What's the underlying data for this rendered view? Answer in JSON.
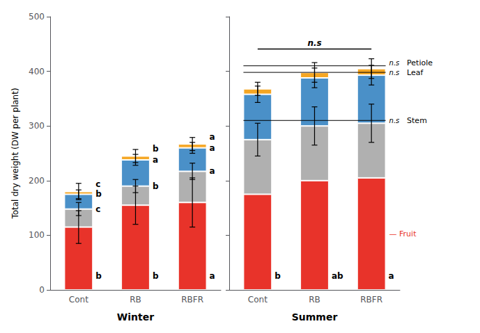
{
  "chart_data": [
    {
      "type": "bar",
      "stacked": true,
      "grid": false,
      "xlabel": "Winter",
      "ylabel": "Total dry weight (DW per plant)",
      "categories": [
        "Cont",
        "RB",
        "RBFR"
      ],
      "ylim": [
        0,
        500
      ],
      "yticks": [
        0,
        100,
        200,
        300,
        400,
        500
      ],
      "series": [
        {
          "name": "Fruit",
          "color": "#e8332a",
          "values": [
            115,
            155,
            160
          ],
          "errors": [
            30,
            35,
            45
          ],
          "letters": [
            "b",
            "b",
            "a"
          ]
        },
        {
          "name": "Stem",
          "color": "#b0b0b0",
          "values": [
            33,
            35,
            57
          ],
          "errors": [
            12,
            12,
            15
          ],
          "letters": [
            "c",
            "b",
            "a"
          ]
        },
        {
          "name": "Leaf",
          "color": "#4a90c8",
          "values": [
            27,
            48,
            43
          ],
          "errors": [
            8,
            10,
            10
          ],
          "letters": [
            "b",
            "a",
            "a"
          ]
        },
        {
          "name": "Petiole",
          "color": "#f5a623",
          "values": [
            5,
            7,
            7
          ]
        }
      ],
      "total_errors": [
        15,
        12,
        12
      ],
      "total_letters": [
        "c",
        "b",
        "a"
      ]
    },
    {
      "type": "bar",
      "stacked": true,
      "grid": false,
      "tick_labels": "x",
      "xlabel": "Summer",
      "categories": [
        "Cont",
        "RB",
        "RBFR"
      ],
      "ylim": [
        0,
        500
      ],
      "yticks": [
        0,
        100,
        200,
        300,
        400,
        500
      ],
      "series": [
        {
          "name": "Fruit",
          "color": "#e8332a",
          "values": [
            175,
            200,
            205
          ],
          "letters": [
            "b",
            "ab",
            "a"
          ]
        },
        {
          "name": "Stem",
          "color": "#b0b0b0",
          "values": [
            100,
            100,
            100
          ],
          "errors": [
            30,
            35,
            35
          ]
        },
        {
          "name": "Leaf",
          "color": "#4a90c8",
          "values": [
            83,
            88,
            88
          ],
          "errors": [
            15,
            18,
            18
          ]
        },
        {
          "name": "Petiole",
          "color": "#f5a623",
          "values": [
            10,
            10,
            12
          ]
        }
      ],
      "total_errors": [
        12,
        18,
        18
      ],
      "annotations": [
        {
          "text": "n.s",
          "kind": "bracket"
        },
        {
          "text": "n.s",
          "kind": "bracket",
          "series": "Petiole"
        },
        {
          "text": "Petiole",
          "series": "Petiole"
        },
        {
          "text": "n.s",
          "kind": "bracket",
          "series": "Leaf"
        },
        {
          "text": "Leaf",
          "series": "Leaf"
        },
        {
          "text": "n.s",
          "kind": "bracket",
          "series": "Stem"
        },
        {
          "text": "Stem",
          "series": "Stem"
        },
        {
          "text": "— Fruit",
          "series": "Fruit",
          "color": "#e8332a"
        }
      ]
    }
  ]
}
